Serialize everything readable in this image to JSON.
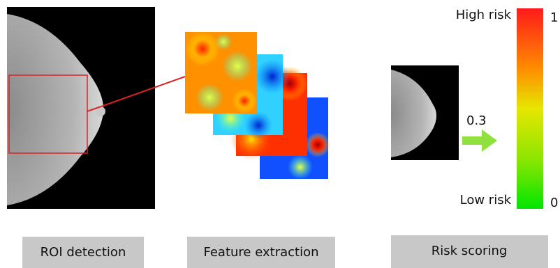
{
  "stages": [
    {
      "label": "ROI detection"
    },
    {
      "label": "Feature extraction"
    },
    {
      "label": "Risk scoring"
    }
  ],
  "colorbar": {
    "high_label": "High risk",
    "high_value": 1,
    "low_label": "Low risk",
    "low_value": 0
  },
  "score": 0.3
}
